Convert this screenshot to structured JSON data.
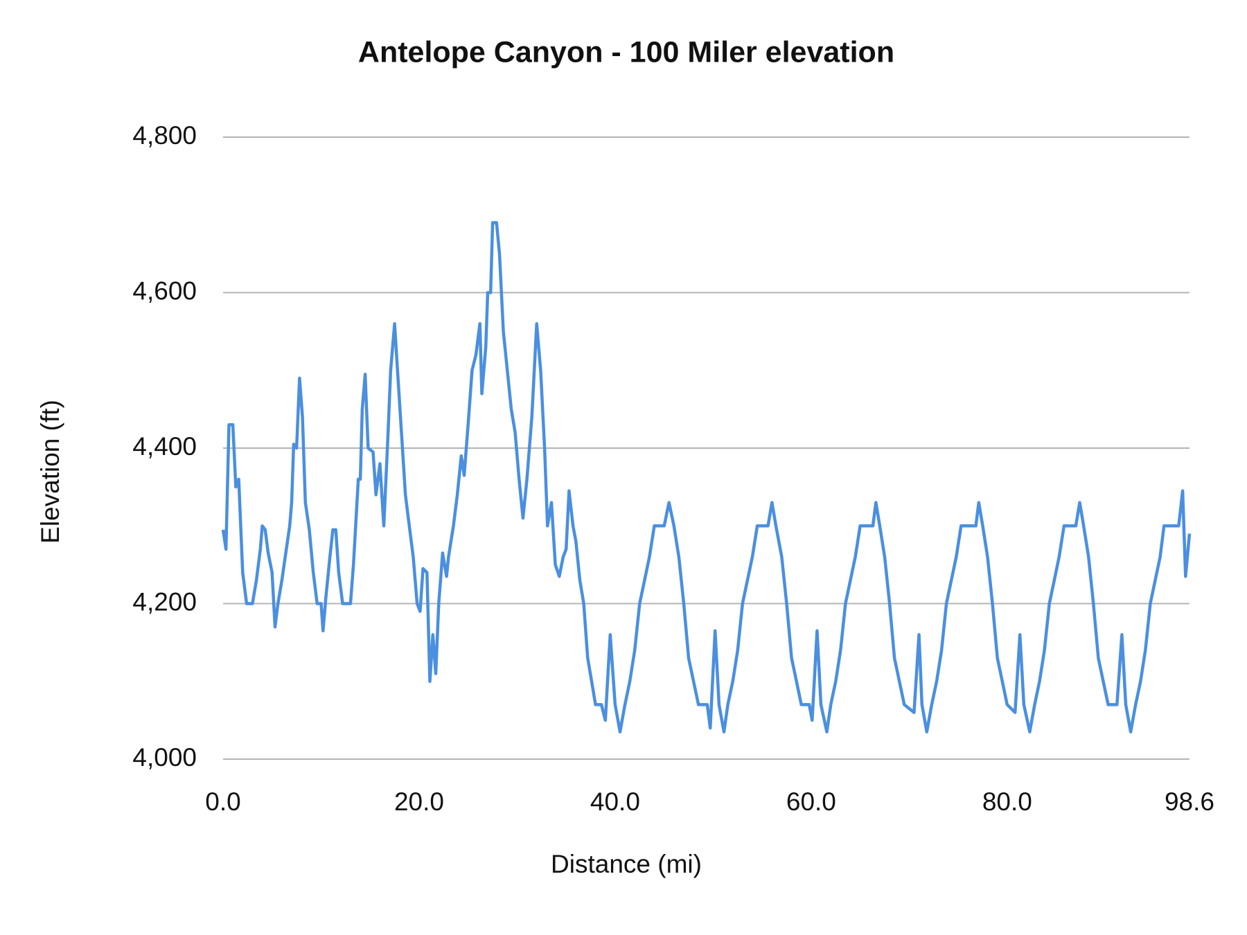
{
  "chart_data": {
    "type": "line",
    "title": "Antelope Canyon - 100 Miler elevation",
    "x_label": "Distance (mi)",
    "y_label": "Elevation (ft)",
    "x": [
      0,
      0.3,
      0.6,
      1.0,
      1.3,
      1.6,
      2.0,
      2.4,
      3.0,
      3.4,
      3.8,
      4.0,
      4.3,
      4.6,
      5.0,
      5.3,
      5.6,
      6.0,
      6.4,
      6.8,
      7.0,
      7.2,
      7.5,
      7.8,
      8.1,
      8.4,
      8.8,
      9.2,
      9.6,
      10.0,
      10.2,
      10.5,
      10.9,
      11.2,
      11.5,
      11.8,
      12.2,
      13.0,
      13.3,
      13.8,
      14.0,
      14.2,
      14.5,
      14.8,
      15.3,
      15.6,
      16.0,
      16.4,
      16.8,
      17.1,
      17.5,
      17.8,
      18.2,
      18.6,
      19.0,
      19.4,
      19.8,
      20.1,
      20.4,
      20.8,
      21.1,
      21.4,
      21.7,
      22.0,
      22.4,
      22.8,
      23.0,
      23.5,
      23.9,
      24.3,
      24.6,
      25.0,
      25.4,
      25.8,
      26.2,
      26.4,
      26.8,
      27.0,
      27.3,
      27.5,
      27.9,
      28.2,
      28.6,
      29.0,
      29.4,
      29.8,
      30.2,
      30.6,
      31.0,
      31.5,
      32.0,
      32.4,
      32.8,
      33.1,
      33.5,
      33.9,
      34.3,
      34.7,
      35.0,
      35.3,
      35.7,
      36.0,
      36.4,
      36.8,
      37.2,
      37.6,
      38.0,
      38.6,
      39.0,
      39.5,
      40.0,
      40.5,
      41.0,
      41.5,
      42.0,
      42.5,
      43.0,
      43.5,
      44.0,
      45.0,
      45.5,
      46.0,
      46.5,
      47.0,
      47.5,
      48.0,
      48.5,
      49.4,
      49.7,
      50.2,
      50.6,
      51.1,
      51.5,
      52.0,
      52.5,
      53.0,
      53.5,
      54.0,
      54.5,
      55.6,
      56.0,
      56.4,
      57.0,
      57.5,
      58.0,
      58.5,
      59.0,
      59.8,
      60.1,
      60.6,
      61.0,
      61.6,
      62.0,
      62.5,
      63.0,
      63.5,
      64.0,
      64.5,
      65.0,
      66.3,
      66.6,
      67.0,
      67.5,
      68.0,
      68.5,
      69.0,
      69.5,
      70.5,
      71.0,
      71.3,
      71.8,
      72.3,
      72.8,
      73.3,
      73.8,
      74.3,
      74.8,
      75.3,
      76.8,
      77.1,
      77.5,
      78.0,
      78.5,
      79.0,
      79.5,
      80.0,
      80.8,
      81.3,
      81.7,
      82.3,
      82.8,
      83.3,
      83.8,
      84.3,
      84.8,
      85.3,
      85.8,
      87.0,
      87.4,
      87.8,
      88.3,
      88.8,
      89.3,
      89.8,
      90.3,
      91.2,
      91.7,
      92.1,
      92.6,
      93.1,
      93.6,
      94.1,
      94.6,
      95.1,
      95.6,
      96.0,
      97.5,
      97.9,
      98.2,
      98.6
    ],
    "series": [
      {
        "name": "Elevation",
        "color": "#4a8fe0",
        "values": [
          4295,
          4270,
          4430,
          4430,
          4350,
          4360,
          4240,
          4200,
          4200,
          4230,
          4270,
          4300,
          4295,
          4265,
          4240,
          4170,
          4200,
          4230,
          4265,
          4300,
          4330,
          4405,
          4400,
          4490,
          4440,
          4330,
          4295,
          4240,
          4200,
          4200,
          4165,
          4210,
          4260,
          4295,
          4295,
          4240,
          4200,
          4200,
          4250,
          4360,
          4360,
          4450,
          4495,
          4400,
          4395,
          4340,
          4380,
          4300,
          4410,
          4500,
          4560,
          4500,
          4420,
          4340,
          4300,
          4260,
          4200,
          4190,
          4245,
          4240,
          4100,
          4160,
          4110,
          4200,
          4265,
          4235,
          4260,
          4300,
          4340,
          4390,
          4365,
          4430,
          4500,
          4520,
          4560,
          4470,
          4530,
          4600,
          4600,
          4690,
          4690,
          4650,
          4550,
          4500,
          4450,
          4420,
          4360,
          4310,
          4360,
          4440,
          4560,
          4500,
          4400,
          4300,
          4330,
          4250,
          4235,
          4260,
          4270,
          4345,
          4300,
          4280,
          4230,
          4200,
          4130,
          4100,
          4070,
          4070,
          4050,
          4160,
          4070,
          4035,
          4070,
          4100,
          4140,
          4200,
          4230,
          4260,
          4300,
          4300,
          4330,
          4300,
          4260,
          4200,
          4130,
          4100,
          4070,
          4070,
          4040,
          4165,
          4070,
          4035,
          4070,
          4100,
          4140,
          4200,
          4230,
          4260,
          4300,
          4300,
          4330,
          4300,
          4260,
          4200,
          4130,
          4100,
          4070,
          4070,
          4050,
          4165,
          4070,
          4035,
          4070,
          4100,
          4140,
          4200,
          4230,
          4260,
          4300,
          4300,
          4330,
          4300,
          4260,
          4200,
          4130,
          4100,
          4070,
          4060,
          4160,
          4070,
          4035,
          4070,
          4100,
          4140,
          4200,
          4230,
          4260,
          4300,
          4300,
          4330,
          4300,
          4260,
          4200,
          4130,
          4100,
          4070,
          4060,
          4160,
          4070,
          4035,
          4070,
          4100,
          4140,
          4200,
          4230,
          4260,
          4300,
          4300,
          4330,
          4300,
          4260,
          4200,
          4130,
          4100,
          4070,
          4070,
          4160,
          4070,
          4035,
          4070,
          4100,
          4140,
          4200,
          4230,
          4260,
          4300,
          4300,
          4345,
          4235,
          4290
        ]
      }
    ],
    "xlim": [
      0,
      98.6
    ],
    "xticks": [
      {
        "value": 0,
        "label": "0.0"
      },
      {
        "value": 20,
        "label": "20.0"
      },
      {
        "value": 40,
        "label": "40.0"
      },
      {
        "value": 60,
        "label": "60.0"
      },
      {
        "value": 80,
        "label": "80.0"
      },
      {
        "value": 98.6,
        "label": "98.6"
      }
    ],
    "ylim": [
      4000,
      4800
    ],
    "yticks": [
      {
        "value": 4000,
        "label": "4,000"
      },
      {
        "value": 4200,
        "label": "4,200"
      },
      {
        "value": 4400,
        "label": "4,400"
      },
      {
        "value": 4600,
        "label": "4,600"
      },
      {
        "value": 4800,
        "label": "4,800"
      }
    ],
    "grid": true
  }
}
